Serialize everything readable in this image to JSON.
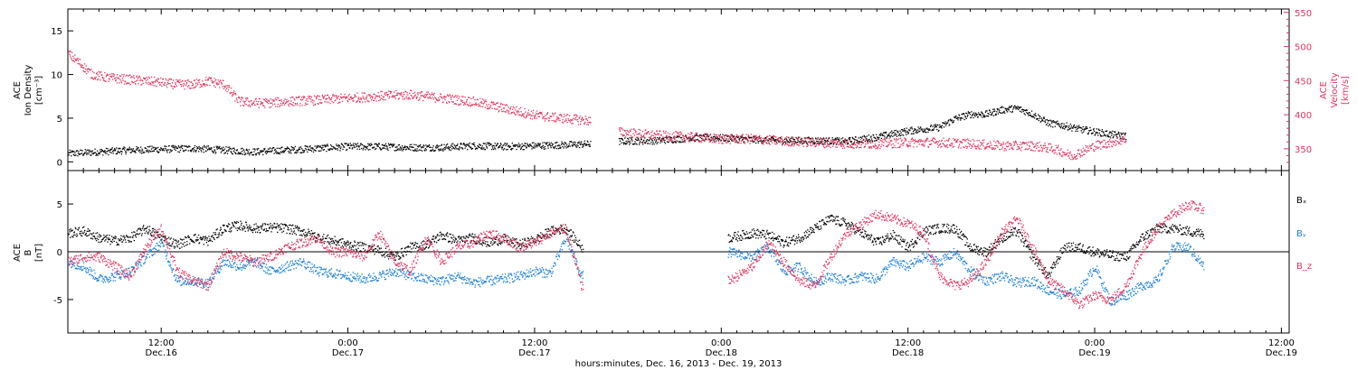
{
  "colors": {
    "black": "#000000",
    "density": "#000000",
    "velocity": "#e0345e",
    "bx": "#000000",
    "by": "#1a7fd8",
    "bz": "#e0345e"
  },
  "xaxis": {
    "title": "hours:minutes, Dec. 16, 2013 - Dec. 19, 2013",
    "range_hours": [
      6,
      84.5
    ],
    "ticks": [
      {
        "hour": 12,
        "time": "12:00",
        "date": "Dec.16"
      },
      {
        "hour": 24,
        "time": "0:00",
        "date": "Dec.17"
      },
      {
        "hour": 36,
        "time": "12:00",
        "date": "Dec.17"
      },
      {
        "hour": 48,
        "time": "0:00",
        "date": "Dec.18"
      },
      {
        "hour": 60,
        "time": "12:00",
        "date": "Dec.18"
      },
      {
        "hour": 72,
        "time": "0:00",
        "date": "Dec.19"
      },
      {
        "hour": 84,
        "time": "12:00",
        "date": "Dec.19"
      }
    ]
  },
  "chart_data": [
    {
      "type": "scatter",
      "panel": "top",
      "ylabel_left": [
        "ACE",
        "Ion Density",
        "[cm⁻³]"
      ],
      "ylabel_right": [
        "ACE",
        "Velocity",
        "[km/s]"
      ],
      "ylim_left": [
        -1,
        17.5
      ],
      "ylim_right": [
        318,
        555
      ],
      "yticks_left": [
        0,
        5,
        10,
        15
      ],
      "yticks_right": [
        350,
        400,
        450,
        500,
        550
      ],
      "series": [
        {
          "axis": "left",
          "x": [
            6,
            8,
            10,
            12,
            14,
            16,
            18,
            20,
            22,
            24,
            26,
            28,
            30,
            32,
            34,
            36,
            38,
            39.5,
            41.5,
            44,
            46,
            48,
            50,
            52,
            54,
            56,
            58,
            60,
            62,
            63,
            64,
            65,
            66,
            67,
            68,
            69,
            70,
            71,
            72,
            73,
            74
          ],
          "y": [
            1.0,
            1.2,
            1.4,
            1.5,
            1.6,
            1.4,
            1.2,
            1.4,
            1.6,
            1.8,
            1.8,
            1.7,
            1.7,
            1.9,
            1.8,
            1.9,
            2.0,
            2.1,
            2.4,
            2.5,
            2.8,
            2.8,
            2.6,
            2.5,
            2.5,
            2.4,
            2.9,
            3.6,
            4.0,
            5.0,
            5.5,
            5.5,
            6.0,
            6.2,
            5.5,
            4.5,
            4.2,
            3.8,
            3.5,
            3.2,
            3.0
          ]
        },
        {
          "axis": "right",
          "x": [
            6,
            6.8,
            7.5,
            8.5,
            10,
            11,
            12,
            13,
            14,
            15,
            16,
            17,
            18,
            19,
            20,
            22,
            24,
            26,
            28,
            30,
            32,
            34,
            35,
            36,
            37,
            38,
            39.5,
            41.5,
            44,
            46,
            48,
            50,
            52,
            54,
            56,
            58,
            60,
            62,
            64,
            66,
            68,
            69.5,
            70.5,
            72,
            74
          ],
          "y": [
            490,
            475,
            460,
            455,
            452,
            450,
            448,
            445,
            445,
            450,
            445,
            420,
            418,
            418,
            420,
            422,
            425,
            428,
            430,
            425,
            420,
            410,
            405,
            400,
            397,
            395,
            392,
            375,
            370,
            368,
            365,
            365,
            362,
            360,
            358,
            358,
            360,
            360,
            358,
            355,
            355,
            350,
            340,
            355,
            365
          ]
        }
      ]
    },
    {
      "type": "scatter",
      "panel": "bottom",
      "ylabel": [
        "ACE",
        "B",
        "[nT]"
      ],
      "ylim": [
        -8.5,
        8.5
      ],
      "yticks": [
        -5,
        0,
        5
      ],
      "legend": {
        "position": "right",
        "entries": [
          "Bₓ",
          "Bᵧ",
          "B_z"
        ]
      },
      "series": [
        {
          "x": [
            6,
            7,
            8,
            9,
            10,
            11,
            12,
            13,
            14,
            15,
            16,
            17,
            18,
            19,
            20,
            21,
            22,
            23,
            24,
            25,
            26,
            27,
            28,
            29,
            30,
            31,
            32,
            33,
            34,
            35,
            36,
            37,
            38,
            39,
            48.5,
            50,
            51,
            52,
            53,
            54,
            55,
            56,
            57,
            58,
            59,
            60,
            61,
            62,
            63,
            64,
            65,
            66,
            67,
            68,
            69,
            70,
            71,
            72,
            73,
            74,
            75,
            76,
            77,
            78,
            79
          ],
          "y": [
            2.0,
            2.2,
            1.5,
            1.2,
            1.5,
            2.5,
            1.5,
            0.8,
            1.5,
            1.2,
            2.5,
            2.8,
            2.5,
            2.6,
            2.5,
            2.2,
            1.6,
            1.2,
            0.8,
            0.5,
            0.2,
            -0.5,
            0.5,
            0.8,
            1.8,
            1.2,
            1.5,
            1.0,
            1.4,
            0.8,
            1.3,
            2.2,
            2.5,
            0.5,
            1.5,
            2.0,
            1.8,
            1.0,
            1.5,
            2.5,
            3.5,
            3.0,
            2.0,
            1.0,
            1.8,
            0.5,
            2.2,
            2.5,
            2.5,
            0.5,
            0.0,
            1.5,
            2.2,
            -0.5,
            -2.5,
            0.5,
            0.5,
            0.0,
            -0.3,
            -0.5,
            1.5,
            2.5,
            2.5,
            2.2,
            1.9
          ]
        },
        {
          "x": [
            6,
            7,
            8,
            9,
            10,
            11,
            12,
            13,
            14,
            15,
            16,
            17,
            18,
            19,
            20,
            21,
            22,
            23,
            24,
            25,
            26,
            27,
            28,
            29,
            30,
            31,
            32,
            33,
            34,
            35,
            36,
            37,
            38,
            39,
            48.5,
            50,
            51,
            52,
            53,
            54,
            55,
            56,
            57,
            58,
            59,
            60,
            61,
            62,
            63,
            64,
            65,
            66,
            67,
            68,
            69,
            70,
            71,
            72,
            73,
            74,
            75,
            76,
            77,
            78,
            79
          ],
          "y": [
            -1.0,
            -1.5,
            -2.8,
            -2.5,
            -2.0,
            -0.5,
            1.0,
            -3.0,
            -3.0,
            -3.2,
            -1.0,
            -1.5,
            -1.0,
            -2.0,
            -1.5,
            -1.0,
            -2.0,
            -2.2,
            -2.5,
            -2.8,
            -2.5,
            -2.0,
            -2.5,
            -2.8,
            -3.0,
            -2.5,
            -3.2,
            -3.0,
            -2.8,
            -2.5,
            -2.0,
            -2.2,
            1.5,
            -2.5,
            0.0,
            -0.5,
            0.5,
            -2.0,
            -1.5,
            -3.2,
            -2.5,
            -3.0,
            -2.5,
            -2.8,
            -1.0,
            -1.5,
            -0.5,
            -1.0,
            0.0,
            -2.0,
            -3.0,
            -2.5,
            -3.2,
            -3.0,
            -4.0,
            -4.5,
            -4.0,
            -1.5,
            -5.2,
            -4.5,
            -3.5,
            -3.0,
            0.5,
            0.5,
            -1.5
          ]
        },
        {
          "x": [
            6,
            7,
            8,
            9,
            10,
            11,
            12,
            13,
            14,
            15,
            16,
            17,
            18,
            19,
            20,
            21,
            22,
            23,
            24,
            25,
            26,
            27,
            28,
            29,
            30,
            31,
            32,
            33,
            34,
            35,
            36,
            37,
            38,
            39,
            48.5,
            50,
            51,
            52,
            53,
            54,
            55,
            56,
            57,
            58,
            59,
            60,
            61,
            62,
            63,
            64,
            65,
            66,
            67,
            68,
            69,
            70,
            71,
            72,
            73,
            74,
            75,
            76,
            77,
            78,
            79
          ],
          "y": [
            -1.0,
            -0.5,
            -0.5,
            -1.5,
            -2.5,
            0.5,
            2.5,
            -2.0,
            -3.0,
            -3.5,
            0.0,
            -0.5,
            -1.0,
            -0.5,
            0.5,
            1.0,
            1.5,
            0.0,
            0.0,
            -0.5,
            2.0,
            -1.0,
            -2.0,
            1.5,
            -1.0,
            0.5,
            1.0,
            2.0,
            1.5,
            0.5,
            1.0,
            2.0,
            2.5,
            -3.5,
            -3.0,
            -1.5,
            1.0,
            -1.0,
            -3.0,
            -3.5,
            -0.5,
            2.0,
            3.0,
            4.0,
            3.5,
            3.0,
            2.0,
            -2.5,
            -3.5,
            -3.0,
            -1.0,
            2.0,
            3.5,
            0.5,
            -3.0,
            -4.0,
            -5.5,
            -4.5,
            -5.0,
            -3.5,
            0.0,
            2.5,
            4.0,
            5.0,
            4.5
          ]
        }
      ]
    }
  ]
}
